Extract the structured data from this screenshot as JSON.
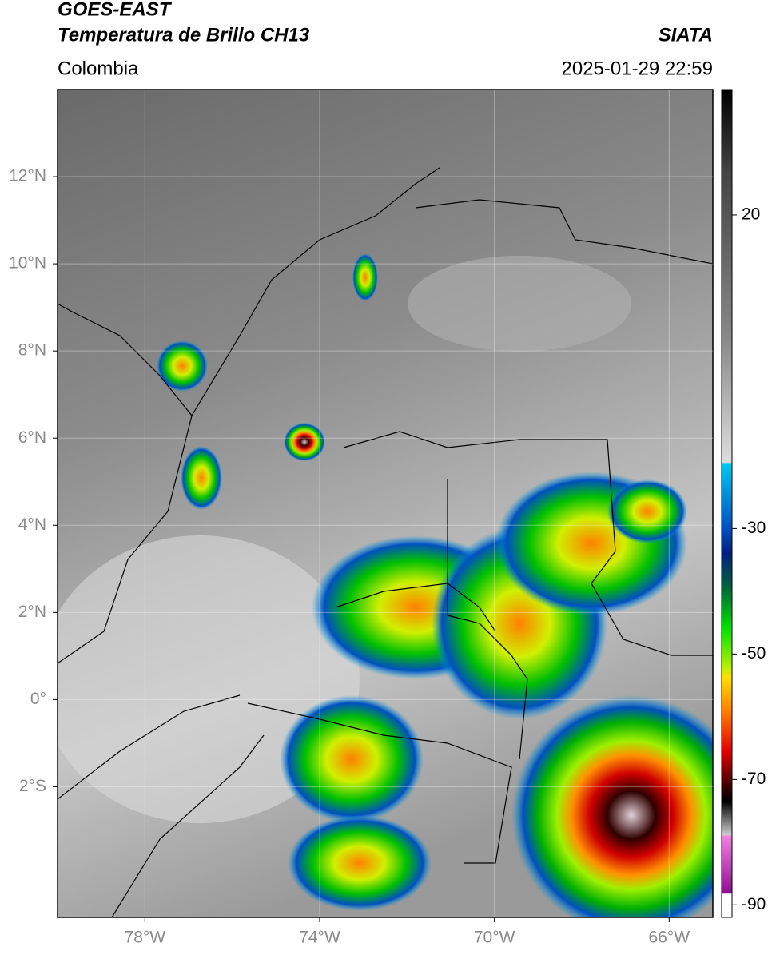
{
  "header": {
    "title_line1": "GOES-EAST",
    "title_line2": "Temperatura de Brillo CH13",
    "source": "SIATA",
    "region": "Colombia",
    "datetime": "2025-01-29 22:59"
  },
  "map": {
    "xlim": [
      -80,
      -65
    ],
    "ylim": [
      -5,
      14
    ],
    "xticks": [
      {
        "value": -78,
        "label": "78°W"
      },
      {
        "value": -74,
        "label": "74°W"
      },
      {
        "value": -70,
        "label": "70°W"
      },
      {
        "value": -66,
        "label": "66°W"
      }
    ],
    "yticks": [
      {
        "value": 12,
        "label": "12°N"
      },
      {
        "value": 10,
        "label": "10°N"
      },
      {
        "value": 8,
        "label": "8°N"
      },
      {
        "value": 6,
        "label": "6°N"
      },
      {
        "value": 4,
        "label": "4°N"
      },
      {
        "value": 2,
        "label": "2°N"
      },
      {
        "value": 0,
        "label": "0°"
      },
      {
        "value": -2,
        "label": "2°S"
      }
    ],
    "grid": true
  },
  "colorbar": {
    "lim": [
      -92,
      40
    ],
    "ticks": [
      20,
      -30,
      -50,
      -70,
      -90
    ]
  }
}
